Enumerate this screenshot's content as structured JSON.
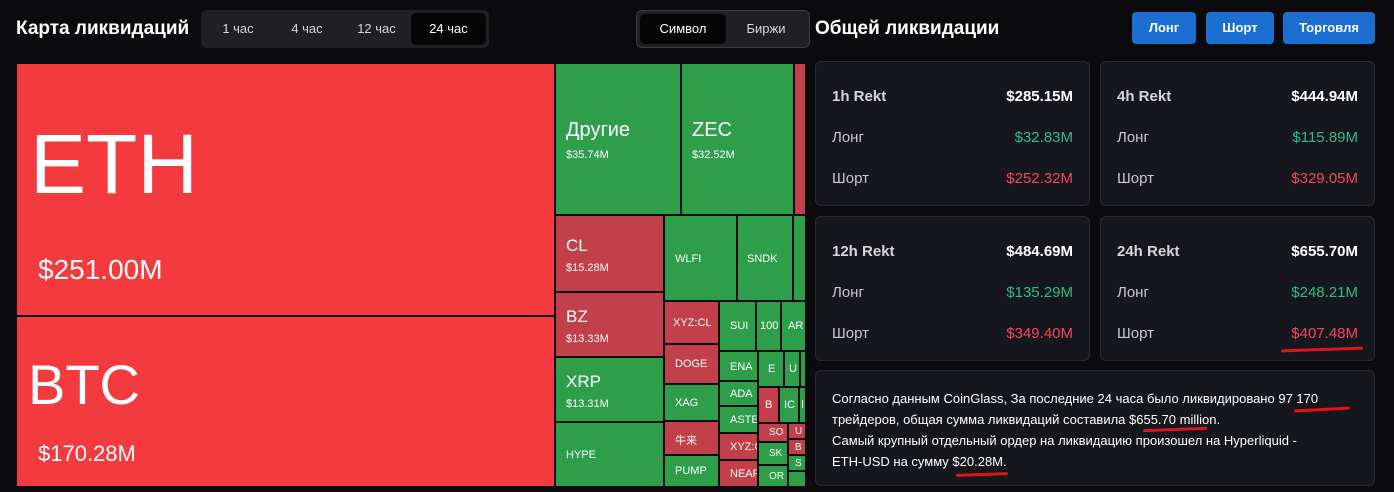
{
  "header": {
    "title": "Карта ликвидаций",
    "timeframes": [
      "1 час",
      "4 час",
      "12 час",
      "24 час"
    ],
    "active_timeframe": "24 час",
    "modes": [
      "Символ",
      "Биржи"
    ],
    "active_mode": "Символ",
    "right_title": "Общей ликвидации",
    "buttons": {
      "long": "Лонг",
      "short": "Шорт",
      "trade": "Торговля"
    }
  },
  "treemap": {
    "eth": {
      "symbol": "ETH",
      "value": "$251.00M"
    },
    "btc": {
      "symbol": "BTC",
      "value": "$170.28M"
    },
    "other": {
      "symbol": "Другие",
      "value": "$35.74M"
    },
    "zec": {
      "symbol": "ZEC",
      "value": "$32.52M"
    },
    "cl": {
      "symbol": "CL",
      "value": "$15.28M"
    },
    "bz": {
      "symbol": "BZ",
      "value": "$13.33M"
    },
    "xrp": {
      "symbol": "XRP",
      "value": "$13.31M"
    },
    "hype": {
      "symbol": "HYPE"
    },
    "wlfi": {
      "symbol": "WLFI"
    },
    "sndk": {
      "symbol": "SNDK"
    },
    "xyzcl": {
      "symbol": "XYZ:CL"
    },
    "doge": {
      "symbol": "DOGE"
    },
    "xag": {
      "symbol": "XAG"
    },
    "niulai": {
      "symbol": "牛来"
    },
    "pump": {
      "symbol": "PUMP"
    },
    "sui": {
      "symbol": "SUI"
    },
    "t100": {
      "symbol": "100"
    },
    "ar": {
      "symbol": "AR"
    },
    "ena": {
      "symbol": "ENA"
    },
    "ada": {
      "symbol": "ADA"
    },
    "aste": {
      "symbol": "ASTE"
    },
    "xyz2": {
      "symbol": "XYZ:C"
    },
    "near": {
      "symbol": "NEAR"
    },
    "e": {
      "symbol": "E"
    },
    "u": {
      "symbol": "U"
    },
    "b": {
      "symbol": "B"
    },
    "ic": {
      "symbol": "IC"
    },
    "i": {
      "symbol": "I"
    },
    "so": {
      "symbol": "SO"
    },
    "sk": {
      "symbol": "SK"
    },
    "or": {
      "symbol": "OR"
    },
    "u2": {
      "symbol": "U"
    },
    "b2": {
      "symbol": "B"
    },
    "ts": {
      "symbol": "S"
    }
  },
  "cards": [
    {
      "period": "1h Rekt",
      "total": "$285.15M",
      "long_label": "Лонг",
      "long": "$32.83M",
      "short_label": "Шорт",
      "short": "$252.32M"
    },
    {
      "period": "4h Rekt",
      "total": "$444.94M",
      "long_label": "Лонг",
      "long": "$115.89M",
      "short_label": "Шорт",
      "short": "$329.05M"
    },
    {
      "period": "12h Rekt",
      "total": "$484.69M",
      "long_label": "Лонг",
      "long": "$135.29M",
      "short_label": "Шорт",
      "short": "$349.40M"
    },
    {
      "period": "24h Rekt",
      "total": "$655.70M",
      "long_label": "Лонг",
      "long": "$248.21M",
      "short_label": "Шорт",
      "short": "$407.48M"
    }
  ],
  "summary": {
    "line1_a": "Согласно данным CoinGlass, За последние 24 часа было ликвидировано ",
    "traders": "97 170",
    "line2_a": "трейдеров, общая сумма ликвидаций составила ",
    "total": "$655.70",
    "line2_b": " million.",
    "line3": "Самый крупный отдельный ордер на ликвидацию произошел на Hyperliquid -",
    "line4_a": "ETH-USD на сумму ",
    "largest": "$20.28M",
    "line4_b": "."
  },
  "colors": {
    "red": "#f23a3f",
    "dark_red": "#c2404a",
    "green": "#2e9e4a",
    "accent": "#1c6fd1",
    "pos": "#2ebd85",
    "neg": "#f6465d",
    "annotation": "#e0121b"
  }
}
